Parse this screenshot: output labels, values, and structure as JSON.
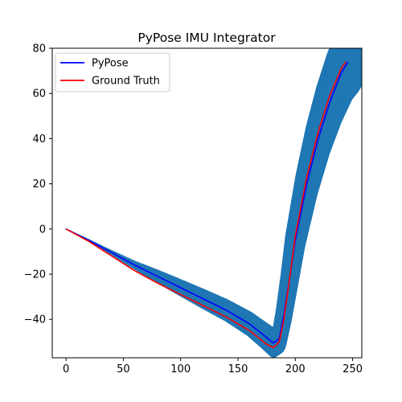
{
  "chart_data": {
    "type": "line",
    "title": "PyPose IMU Integrator",
    "xlabel": "",
    "ylabel": "",
    "xlim": [
      -12,
      258
    ],
    "ylim": [
      -57,
      80
    ],
    "grid": false,
    "legend_position": "top-left",
    "x_ticks": [
      0,
      50,
      100,
      150,
      200,
      250
    ],
    "x_tick_labels": [
      "0",
      "50",
      "100",
      "150",
      "200",
      "250"
    ],
    "y_ticks": [
      -40,
      -20,
      0,
      20,
      40,
      60,
      80
    ],
    "y_tick_labels": [
      "−40",
      "−20",
      "0",
      "20",
      "40",
      "60",
      "80"
    ],
    "series": [
      {
        "name": "PyPose",
        "color": "#0000ff",
        "points": [
          [
            0,
            0
          ],
          [
            20,
            -5
          ],
          [
            40,
            -10.5
          ],
          [
            60,
            -16
          ],
          [
            80,
            -21
          ],
          [
            100,
            -26
          ],
          [
            120,
            -31
          ],
          [
            140,
            -36
          ],
          [
            160,
            -42
          ],
          [
            175,
            -48
          ],
          [
            181,
            -50.5
          ],
          [
            186,
            -48.5
          ],
          [
            190,
            -38
          ],
          [
            195,
            -22
          ],
          [
            200,
            -5
          ],
          [
            210,
            20
          ],
          [
            220,
            40
          ],
          [
            230,
            56
          ],
          [
            240,
            69
          ],
          [
            246,
            74
          ]
        ]
      },
      {
        "name": "Ground Truth",
        "color": "#ff0000",
        "points": [
          [
            0,
            0
          ],
          [
            20,
            -5.5
          ],
          [
            40,
            -12
          ],
          [
            60,
            -18.5
          ],
          [
            80,
            -24
          ],
          [
            100,
            -29
          ],
          [
            120,
            -34
          ],
          [
            140,
            -39
          ],
          [
            160,
            -45
          ],
          [
            175,
            -51
          ],
          [
            181,
            -52.5
          ],
          [
            186,
            -50
          ],
          [
            190,
            -40
          ],
          [
            195,
            -22
          ],
          [
            200,
            -3
          ],
          [
            210,
            23
          ],
          [
            220,
            43
          ],
          [
            230,
            59
          ],
          [
            240,
            71
          ],
          [
            244,
            74
          ]
        ]
      }
    ],
    "uncertainty_band": {
      "color": "#1f77b4",
      "center": [
        [
          0,
          0
        ],
        [
          20,
          -5
        ],
        [
          40,
          -10.5
        ],
        [
          60,
          -16
        ],
        [
          80,
          -21
        ],
        [
          100,
          -26
        ],
        [
          120,
          -31
        ],
        [
          140,
          -36
        ],
        [
          160,
          -42
        ],
        [
          175,
          -48
        ],
        [
          181,
          -50.5
        ],
        [
          186,
          -48.5
        ],
        [
          190,
          -38
        ],
        [
          195,
          -22
        ],
        [
          200,
          -5
        ],
        [
          210,
          20
        ],
        [
          220,
          40
        ],
        [
          230,
          56
        ],
        [
          240,
          69
        ],
        [
          246,
          74
        ]
      ],
      "radius_x": [
        0.3,
        0.6,
        1.2,
        2,
        3,
        3.8,
        4.5,
        5,
        5.6,
        6.2,
        6.5,
        6.8,
        7.3,
        8,
        9,
        10.5,
        12,
        13.5,
        15,
        16
      ],
      "radius_y": [
        0.3,
        0.6,
        1.2,
        2,
        3,
        3.8,
        4.5,
        5,
        5.6,
        6.2,
        6.5,
        6.8,
        7.3,
        8,
        9,
        10.5,
        12,
        13.5,
        15,
        16
      ]
    }
  }
}
